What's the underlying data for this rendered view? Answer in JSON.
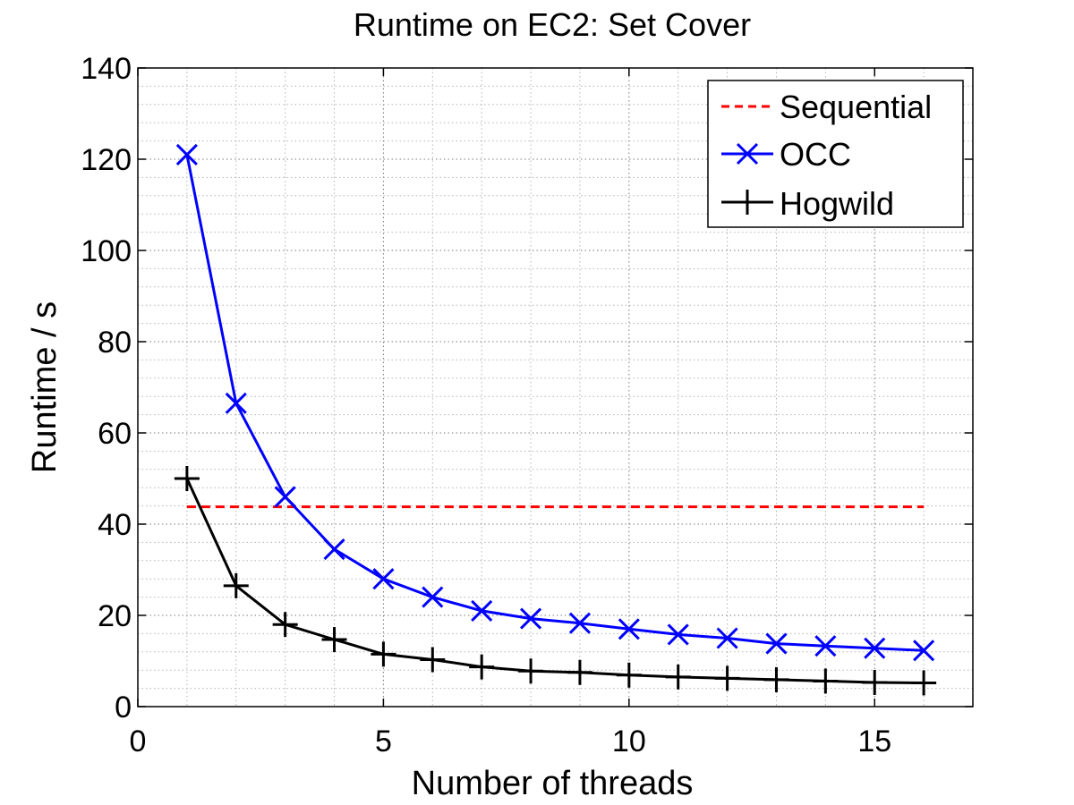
{
  "chart_data": {
    "type": "line",
    "title": "Runtime on EC2: Set Cover",
    "xlabel": "Number of threads",
    "ylabel": "Runtime / s",
    "xlim": [
      0,
      17
    ],
    "ylim": [
      0,
      140
    ],
    "xticks": [
      0,
      5,
      10,
      15
    ],
    "yticks": [
      0,
      20,
      40,
      60,
      80,
      100,
      120,
      140
    ],
    "grid": true,
    "minor_grid": true,
    "legend_position": "top-right",
    "series": [
      {
        "name": "Sequential",
        "color": "#ff0000",
        "line_style": "dashed",
        "marker": "none",
        "x": [
          1,
          16
        ],
        "y": [
          43.8,
          43.8
        ]
      },
      {
        "name": "OCC",
        "color": "#0000ff",
        "line_style": "solid",
        "marker": "x",
        "x": [
          1,
          2,
          3,
          4,
          5,
          6,
          7,
          8,
          9,
          10,
          11,
          12,
          13,
          14,
          15,
          16
        ],
        "y": [
          121,
          66.5,
          46,
          34.5,
          28,
          24,
          21,
          19.3,
          18.3,
          17,
          15.8,
          15,
          13.8,
          13.3,
          12.8,
          12.3
        ]
      },
      {
        "name": "Hogwild",
        "color": "#000000",
        "line_style": "solid",
        "marker": "plus",
        "x": [
          1,
          2,
          3,
          4,
          5,
          6,
          7,
          8,
          9,
          10,
          11,
          12,
          13,
          14,
          15,
          16
        ],
        "y": [
          50,
          26.5,
          18,
          14.7,
          11.5,
          10.3,
          8.7,
          7.8,
          7.5,
          6.9,
          6.5,
          6.2,
          5.9,
          5.6,
          5.3,
          5.2
        ]
      }
    ]
  }
}
